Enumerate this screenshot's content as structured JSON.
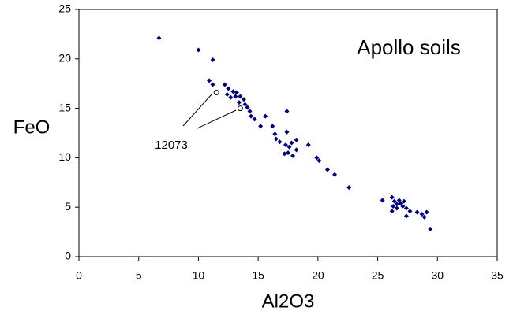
{
  "chart_data": {
    "type": "scatter",
    "title": "Apollo soils",
    "x_label": "Al2O3",
    "y_label": "FeO",
    "annotations": [
      {
        "text": "12073"
      }
    ],
    "series": [
      {
        "color": "#000080",
        "marker": "diamond",
        "x": [
          6.7,
          10.0,
          11.2,
          10.9,
          11.2,
          12.2,
          12.5,
          12.9,
          13.2,
          12.4,
          12.7,
          13.1,
          13.5,
          13.8,
          13.4,
          13.9,
          14.1,
          14.3,
          14.4,
          14.7,
          15.2,
          15.6,
          16.2,
          16.4,
          16.5,
          16.8,
          17.4,
          17.4,
          17.3,
          17.6,
          17.8,
          18.2,
          17.5,
          17.9,
          17.2,
          18.2,
          19.2,
          19.9,
          20.1,
          20.8,
          21.4,
          22.6,
          25.4,
          26.2,
          26.4,
          26.6,
          26.8,
          26.9,
          27.1,
          26.2,
          27.4,
          27.2,
          27.7,
          27.4,
          28.3,
          28.7,
          29.1,
          28.9,
          29.4,
          26.3,
          26.6
        ],
        "y": [
          22.1,
          20.9,
          19.9,
          17.8,
          17.4,
          17.4,
          17.0,
          16.7,
          16.6,
          16.4,
          16.1,
          16.2,
          16.2,
          15.9,
          15.6,
          15.4,
          15.1,
          14.7,
          14.2,
          13.9,
          13.2,
          14.2,
          13.2,
          12.4,
          11.9,
          11.6,
          12.6,
          14.7,
          11.3,
          11.1,
          11.5,
          11.8,
          10.5,
          10.2,
          10.4,
          10.8,
          11.3,
          10.0,
          9.7,
          8.8,
          8.3,
          7.0,
          5.7,
          6.0,
          5.6,
          5.3,
          5.7,
          5.4,
          5.1,
          4.6,
          4.9,
          5.6,
          4.6,
          4.1,
          4.5,
          4.3,
          4.5,
          4.0,
          2.8,
          5.1,
          4.9
        ]
      },
      {
        "color": "#000000",
        "marker": "open-circle",
        "x": [
          11.5,
          13.5
        ],
        "y": [
          16.6,
          15.0
        ]
      }
    ],
    "xlim": [
      0,
      35
    ],
    "xticks": [
      0,
      5,
      10,
      15,
      20,
      25,
      30,
      35
    ],
    "ylim": [
      0,
      25
    ],
    "yticks": [
      0,
      5,
      10,
      15,
      20,
      25
    ]
  }
}
